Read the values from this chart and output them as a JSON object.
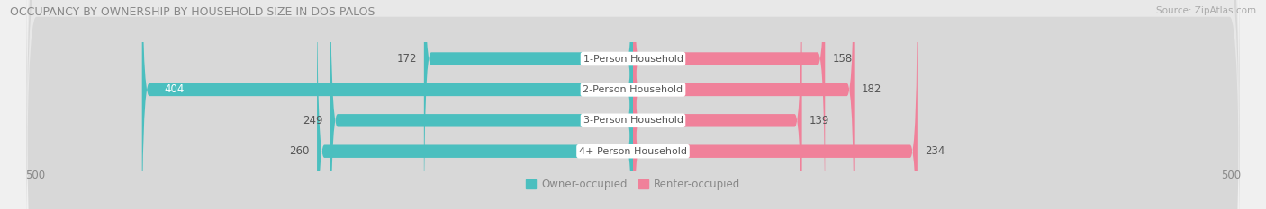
{
  "title": "OCCUPANCY BY OWNERSHIP BY HOUSEHOLD SIZE IN DOS PALOS",
  "source": "Source: ZipAtlas.com",
  "categories": [
    "1-Person Household",
    "2-Person Household",
    "3-Person Household",
    "4+ Person Household"
  ],
  "owner_values": [
    172,
    404,
    249,
    260
  ],
  "renter_values": [
    158,
    182,
    139,
    234
  ],
  "max_scale": 500,
  "owner_color": "#4BBFBF",
  "owner_color_light": "#a8dede",
  "renter_color": "#F0819A",
  "renter_color_light": "#f9c0ce",
  "bg_color": "#f0f0f0",
  "row_bg_colors": [
    "#e8e8e8",
    "#d8d8d8",
    "#e8e8e8",
    "#d8d8d8"
  ],
  "title_fontsize": 9,
  "tick_fontsize": 8.5,
  "bar_label_fontsize": 8.5,
  "legend_fontsize": 8.5,
  "category_fontsize": 8
}
